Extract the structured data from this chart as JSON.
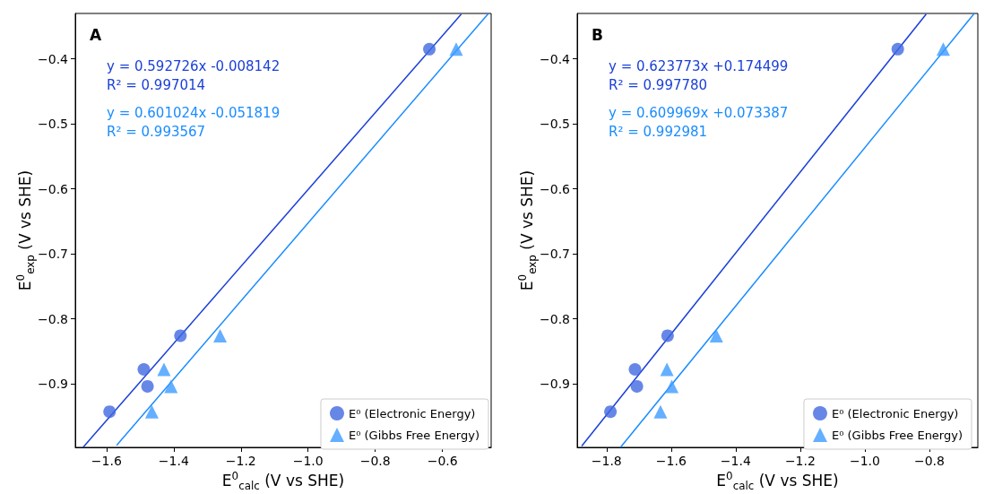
{
  "chart_data": [
    {
      "type": "scatter",
      "xlabel": "E$^{0}$$_{calc}$ (V vs SHE)",
      "ylabel": "E$^{0}$$_{exp}$ (V vs SHE)",
      "annotations": [
        "A",
        "y = 0.592726x -0.008142",
        "R² = 0.997014",
        "y = 0.601024x -0.051819",
        "R² = 0.993567"
      ],
      "xlim": [
        -1.693,
        -0.455
      ],
      "xticks": [
        -1.6,
        -1.4,
        -1.2,
        {
          "value": -1.0,
          "label": "−1.0"
        },
        -0.8,
        -0.6
      ],
      "ylim": [
        -0.998,
        -0.33
      ],
      "yticks": [
        -0.9,
        -0.8,
        -0.7,
        -0.6,
        -0.5,
        -0.4
      ],
      "legend": "bottom right",
      "grid": false,
      "series": [
        {
          "name": "E⁰ (Electronic Energy)",
          "marker": "circle",
          "color": "#4169e1",
          "x": [
            -1.591,
            -1.489,
            -1.478,
            -1.38,
            -0.639
          ],
          "values": [
            -0.943,
            -0.878,
            -0.904,
            -0.826,
            -0.385
          ]
        },
        {
          "name": "E⁰ (Gibbs Free Energy)",
          "marker": "triangle",
          "color": "#3d9bff",
          "x": [
            -1.465,
            -1.429,
            -1.408,
            -1.262,
            -0.559
          ],
          "values": [
            -0.943,
            -0.878,
            -0.904,
            -0.826,
            -0.385
          ]
        },
        {
          "type": "line",
          "marker": "none",
          "color": "#1a3fd8",
          "x": [
            -1.67,
            -0.544
          ],
          "values": [
            -0.998,
            -0.331
          ]
        },
        {
          "type": "line",
          "marker": "none",
          "color": "#1a8cff",
          "x": [
            -1.57,
            -0.463
          ],
          "values": [
            -0.995,
            -0.33
          ]
        }
      ]
    },
    {
      "type": "scatter",
      "xlabel": "E$^{0}$$_{calc}$ (V vs SHE)",
      "ylabel": "E$^{0}$$_{exp}$ (V vs SHE)",
      "annotations": [
        "B",
        "y = 0.623773x +0.174499",
        "R² = 0.997780",
        "y = 0.609969x +0.073387",
        "R² = 0.992981"
      ],
      "xlim": [
        -1.891,
        -0.65
      ],
      "xticks": [
        -1.8,
        -1.6,
        -1.4,
        -1.2,
        {
          "value": -1.0,
          "label": "−1.0"
        },
        -0.8
      ],
      "ylim": [
        -0.998,
        -0.33
      ],
      "yticks": [
        -0.9,
        -0.8,
        -0.7,
        -0.6,
        -0.5,
        -0.4
      ],
      "legend": "bottom right",
      "grid": false,
      "series": [
        {
          "name": "E⁰ (Electronic Energy)",
          "marker": "circle",
          "color": "#4169e1",
          "x": [
            -1.788,
            -1.712,
            -1.706,
            -1.611,
            -0.898
          ],
          "values": [
            -0.943,
            -0.878,
            -0.904,
            -0.826,
            -0.385
          ]
        },
        {
          "name": "E⁰ (Gibbs Free Energy)",
          "marker": "triangle",
          "color": "#3d9bff",
          "x": [
            -1.633,
            -1.613,
            -1.598,
            -1.46,
            -0.757
          ],
          "values": [
            -0.943,
            -0.878,
            -0.904,
            -0.826,
            -0.385
          ]
        },
        {
          "type": "line",
          "marker": "none",
          "color": "#1a3fd8",
          "x": [
            -1.877,
            -0.81
          ],
          "values": [
            -0.996,
            -0.331
          ]
        },
        {
          "type": "line",
          "marker": "none",
          "color": "#1a8cff",
          "x": [
            -1.757,
            -0.661
          ],
          "values": [
            -0.998,
            -0.33
          ]
        }
      ]
    }
  ]
}
